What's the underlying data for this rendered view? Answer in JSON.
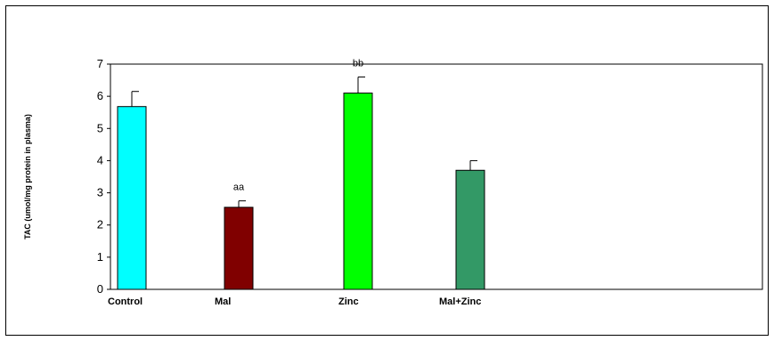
{
  "chart_data": {
    "type": "bar",
    "ylabel": "TAC (umol/mg protein in plasma)",
    "xlabel": "",
    "ylim": [
      0,
      7
    ],
    "yticks": [
      0,
      1,
      2,
      3,
      4,
      5,
      6,
      7
    ],
    "grid": false,
    "legend": "none",
    "categories": [
      "Control",
      "Mal",
      "Zinc",
      "Mal+Zinc"
    ],
    "values": [
      5.68,
      2.55,
      6.1,
      3.7
    ],
    "errors": [
      0.47,
      0.2,
      0.5,
      0.3
    ],
    "annotations": [
      "",
      "aa",
      "bb",
      ""
    ],
    "colors": [
      "#00ffff",
      "#800000",
      "#00ff00",
      "#339966"
    ]
  }
}
